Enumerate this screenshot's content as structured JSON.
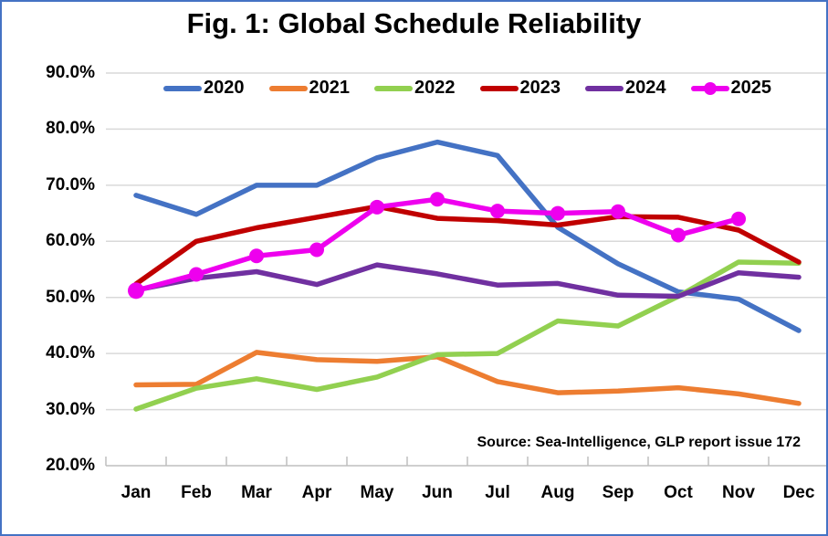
{
  "title": "Fig. 1: Global Schedule Reliability",
  "source_note": "Source: Sea-Intelligence, GLP report issue 172",
  "colors": {
    "border": "#4472C4",
    "gridline": "#D9D9D9",
    "axis_line": "#BFBFBF",
    "text": "#000000"
  },
  "chart_data": {
    "type": "line",
    "title": "Fig. 1: Global Schedule Reliability",
    "xlabel": "",
    "ylabel": "",
    "categories": [
      "Jan",
      "Feb",
      "Mar",
      "Apr",
      "May",
      "Jun",
      "Jul",
      "Aug",
      "Sep",
      "Oct",
      "Nov",
      "Dec"
    ],
    "ylim": [
      20,
      90
    ],
    "ytick_step": 10,
    "ytick_labels": [
      "90.0%",
      "80.0%",
      "70.0%",
      "60.0%",
      "50.0%",
      "40.0%",
      "30.0%",
      "20.0%"
    ],
    "grid": true,
    "legend_position": "top",
    "unit": "percent",
    "series": [
      {
        "name": "2020",
        "color": "#4472C4",
        "markers": false,
        "values": [
          68.2,
          64.8,
          70.0,
          70.0,
          74.9,
          77.7,
          75.3,
          62.5,
          56.0,
          51.0,
          49.7,
          44.1
        ]
      },
      {
        "name": "2021",
        "color": "#ED7D31",
        "markers": false,
        "values": [
          34.4,
          34.5,
          40.2,
          38.9,
          38.6,
          39.4,
          35.0,
          33.0,
          33.3,
          33.9,
          32.8,
          31.1
        ]
      },
      {
        "name": "2022",
        "color": "#92D050",
        "markers": false,
        "values": [
          30.1,
          33.8,
          35.5,
          33.6,
          35.8,
          39.8,
          40.0,
          45.8,
          44.9,
          50.2,
          56.3,
          56.1
        ]
      },
      {
        "name": "2023",
        "color": "#C00000",
        "markers": false,
        "values": [
          52.4,
          60.0,
          62.4,
          64.3,
          66.2,
          64.1,
          63.7,
          62.9,
          64.4,
          64.3,
          62.0,
          56.3
        ]
      },
      {
        "name": "2024",
        "color": "#7030A0",
        "markers": false,
        "values": [
          51.3,
          53.4,
          54.6,
          52.3,
          55.8,
          54.2,
          52.2,
          52.5,
          50.4,
          50.2,
          54.4,
          53.6
        ]
      },
      {
        "name": "2025",
        "color": "#EE00EE",
        "markers": true,
        "values": [
          51.2,
          54.1,
          57.4,
          58.5,
          66.1,
          67.5,
          65.4,
          65.0,
          65.3,
          61.1,
          64.0,
          null
        ]
      }
    ]
  }
}
